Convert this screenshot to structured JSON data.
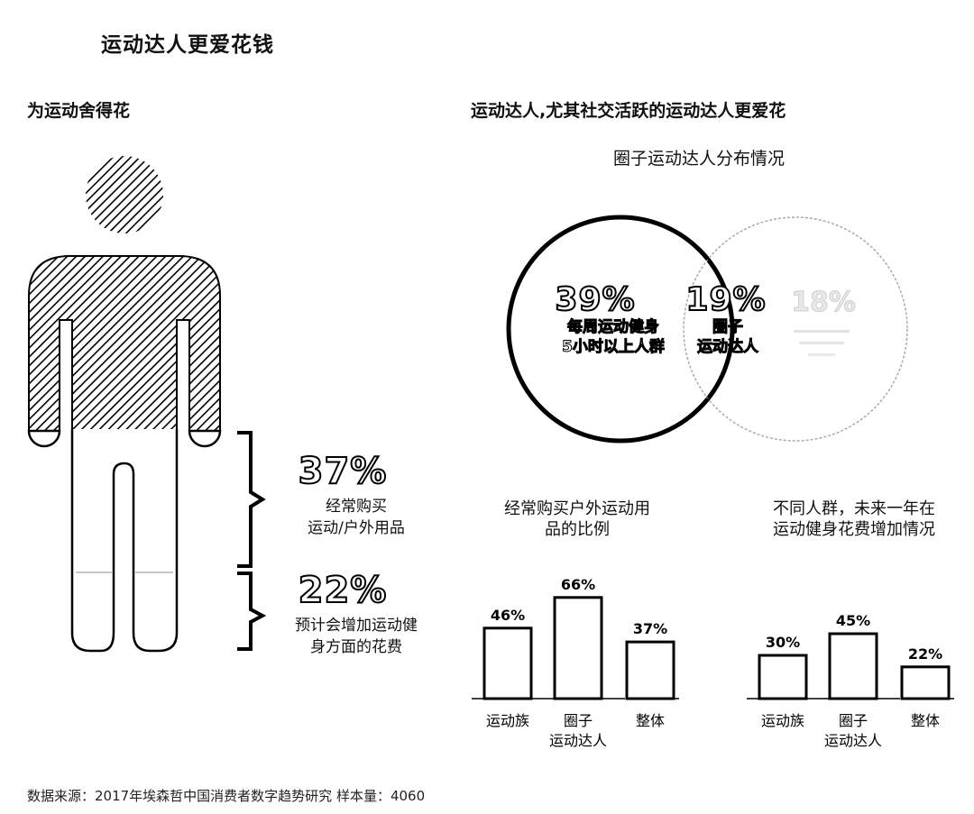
{
  "page": {
    "title": "运动达人更爱花钱",
    "left_heading": "为运动舍得花",
    "right_heading": "运动达人,尤其社交活跃的运动达人更爱花",
    "source": "数据来源：2017年埃森哲中国消费者数字趋势研究 样本量：4060"
  },
  "stats": [
    {
      "value": "37%",
      "label_line1": "经常购买",
      "label_line2": "运动/户外用品"
    },
    {
      "value": "22%",
      "label_line1": "预计会增加运动健",
      "label_line2": "身方面的花费"
    }
  ],
  "venn": {
    "title": "圈子运动达人分布情况",
    "left": {
      "value": "39%",
      "line1": "每周运动健身",
      "line2": "5小时以上人群"
    },
    "middle": {
      "value": "19%",
      "line1": "圈子",
      "line2": "运动达人"
    },
    "right": {
      "value": "18%"
    }
  },
  "chart_data": [
    {
      "type": "bar",
      "title": "经常购买户外运动用品的比例",
      "categories": [
        "运动族",
        "圈子运动达人",
        "整体"
      ],
      "category_lines": [
        [
          "运动族"
        ],
        [
          "圈子",
          "运动达人"
        ],
        [
          "整体"
        ]
      ],
      "values": [
        46,
        66,
        37
      ],
      "value_labels": [
        "46%",
        "66%",
        "37%"
      ]
    },
    {
      "type": "bar",
      "title": "不同人群，未来一年在运动健身花费增加情况",
      "categories": [
        "运动族",
        "圈子运动达人",
        "整体"
      ],
      "category_lines": [
        [
          "运动族"
        ],
        [
          "圈子",
          "运动达人"
        ],
        [
          "整体"
        ]
      ],
      "values": [
        30,
        45,
        22
      ],
      "value_labels": [
        "30%",
        "45%",
        "22%"
      ]
    }
  ],
  "colors": {
    "ink": "#000000",
    "background": "#ffffff",
    "faded": "#d6d6d6"
  }
}
